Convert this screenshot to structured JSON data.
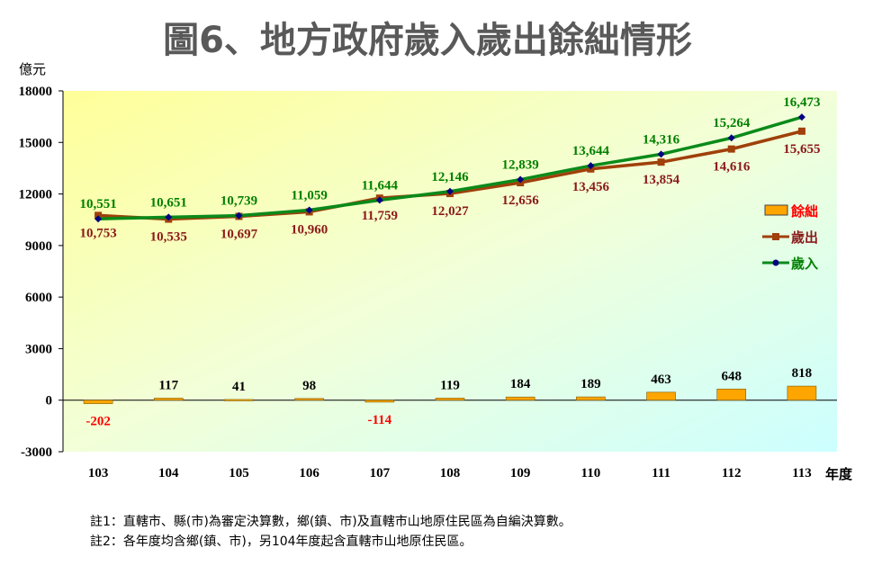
{
  "chart_data": {
    "type": "bar+line",
    "title": "圖6、地方政府歲入歲出餘絀情形",
    "ylabel": "億元",
    "xlabel": "年度",
    "ylim": [
      -3000,
      18000
    ],
    "yticks": [
      18000,
      15000,
      12000,
      9000,
      6000,
      3000,
      0,
      -3000
    ],
    "categories": [
      "103",
      "104",
      "105",
      "106",
      "107",
      "108",
      "109",
      "110",
      "111",
      "112",
      "113"
    ],
    "series": [
      {
        "name": "餘絀",
        "type": "bar",
        "color": "#FFA500",
        "label_color": "#000000",
        "neg_label_color": "#FF0000",
        "values": [
          -202,
          117,
          41,
          98,
          -114,
          119,
          184,
          189,
          463,
          648,
          818
        ]
      },
      {
        "name": "歲出",
        "type": "line",
        "color": "#A0400A",
        "label_color": "#8B1A1A",
        "values": [
          10753,
          10535,
          10697,
          10960,
          11759,
          12027,
          12656,
          13456,
          13854,
          14616,
          15655
        ]
      },
      {
        "name": "歲入",
        "type": "line",
        "color": "#0A8A1A",
        "label_color": "#008000",
        "values": [
          10551,
          10651,
          10739,
          11059,
          11644,
          12146,
          12839,
          13644,
          14316,
          15264,
          16473
        ]
      }
    ],
    "legend": "right",
    "grid": false
  },
  "notes": [
    "註1：直轄市、縣(市)為審定決算數，鄉(鎮、市)及直轄市山地原住民區為自編決算數。",
    "註2：各年度均含鄉(鎮、市)，另104年度起含直轄市山地原住民區。"
  ]
}
